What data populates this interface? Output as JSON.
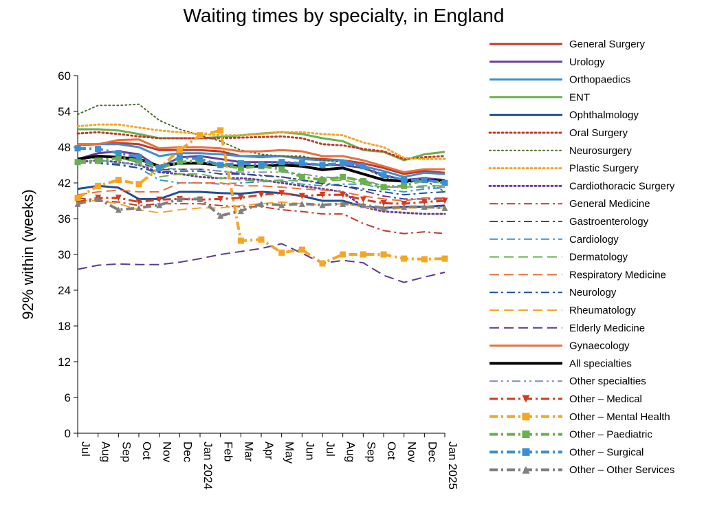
{
  "chart_data": {
    "type": "line",
    "title": "Waiting times by specialty, in England",
    "xlabel": "",
    "ylabel": "92% within  (weeks)",
    "ylim": [
      0,
      60
    ],
    "yticks": [
      0,
      6,
      12,
      18,
      24,
      30,
      36,
      42,
      48,
      54,
      60
    ],
    "grid": false,
    "legend_position": "right",
    "x": [
      "Jul",
      "Aug",
      "Sep",
      "Oct",
      "Nov",
      "Dec",
      "Jan 2024",
      "Feb",
      "Mar",
      "Apr",
      "May",
      "Jun",
      "Jul",
      "Aug",
      "Sep",
      "Oct",
      "Nov",
      "Dec",
      "Jan 2025"
    ],
    "series": [
      {
        "name": "General Surgery",
        "color": "#c0392b",
        "style": "solid",
        "width": 3,
        "marker": "",
        "values": [
          48.5,
          48.5,
          48.7,
          48.5,
          47.5,
          47.5,
          47.5,
          47.3,
          46.5,
          46.5,
          46.5,
          46.2,
          46,
          45.8,
          45.3,
          44.5,
          43.5,
          44,
          43.7
        ]
      },
      {
        "name": "Urology",
        "color": "#6a3d9a",
        "style": "solid",
        "width": 3,
        "marker": "",
        "values": [
          46,
          47,
          47.3,
          46.8,
          44.5,
          46.3,
          46.5,
          46,
          45.5,
          45.5,
          45.5,
          45.2,
          45,
          45,
          44.5,
          43.3,
          42.5,
          42.8,
          42.5
        ]
      },
      {
        "name": "Orthopaedics",
        "color": "#3a8fd4",
        "style": "solid",
        "width": 3,
        "marker": "",
        "values": [
          48.3,
          48.5,
          48.5,
          48,
          46.5,
          47,
          47,
          46.8,
          46.5,
          46.3,
          46.5,
          46,
          45.8,
          45.8,
          44.8,
          44,
          43,
          43.7,
          43.5
        ]
      },
      {
        "name": "ENT",
        "color": "#6ab04c",
        "style": "solid",
        "width": 3,
        "marker": "",
        "values": [
          51,
          51,
          50.8,
          50.2,
          49.5,
          49.5,
          49.5,
          49.7,
          50,
          50.3,
          50.5,
          50.2,
          49.5,
          49,
          47.5,
          47.2,
          45.8,
          46.8,
          47.2
        ]
      },
      {
        "name": "Ophthalmology",
        "color": "#1f4e96",
        "style": "solid",
        "width": 3,
        "marker": "",
        "values": [
          41,
          41.5,
          41.2,
          39.3,
          39.3,
          40.5,
          40.5,
          40.3,
          40.2,
          40.5,
          40.3,
          39.8,
          39,
          39,
          38,
          37.8,
          38,
          38,
          38.2
        ]
      },
      {
        "name": "Oral Surgery",
        "color": "#c0392b",
        "style": "dotted",
        "width": 3,
        "marker": "",
        "values": [
          50.3,
          50.5,
          50.2,
          49.8,
          49.5,
          49.5,
          49.5,
          49.5,
          49.6,
          49.7,
          49.8,
          49.5,
          48.5,
          48.3,
          47.7,
          47.3,
          46,
          46.3,
          46.5
        ]
      },
      {
        "name": "Neurosurgery",
        "color": "#4d6b2a",
        "style": "dotted",
        "width": 2,
        "marker": "",
        "values": [
          53.5,
          55,
          55,
          55.2,
          52.5,
          51,
          50,
          49,
          47.5,
          46.8,
          46.5,
          46.5,
          45.8,
          45.5,
          44.5,
          43,
          42,
          42.5,
          40.5
        ]
      },
      {
        "name": "Plastic Surgery",
        "color": "#f5a623",
        "style": "dotted",
        "width": 3,
        "marker": "",
        "values": [
          51.5,
          51.8,
          51.8,
          51.3,
          50.8,
          50.5,
          50.2,
          50,
          50,
          50.2,
          50.5,
          50.5,
          50.2,
          50,
          48.8,
          48,
          46.2,
          46,
          46
        ]
      },
      {
        "name": "Cardiothoracic Surgery",
        "color": "#6a3d9a",
        "style": "dotted",
        "width": 3,
        "marker": "",
        "values": [
          45.5,
          45.8,
          45.5,
          45,
          43.8,
          43.5,
          43,
          42.8,
          42.8,
          42.5,
          42,
          41.5,
          41,
          40.5,
          38,
          37.2,
          37,
          36.8,
          36.8
        ]
      },
      {
        "name": "General Medicine",
        "color": "#c0392b",
        "style": "dashdot",
        "width": 2,
        "marker": "",
        "values": [
          39.5,
          39,
          38.8,
          38.2,
          38.5,
          38.5,
          38.5,
          38.2,
          38,
          38,
          37.5,
          37.2,
          36.8,
          36.8,
          35.2,
          34,
          33.5,
          33.8,
          33.5
        ]
      },
      {
        "name": "Gastroenterology",
        "color": "#5b3a8c",
        "style": "dashdot",
        "width": 2,
        "marker": "",
        "values": [
          45.3,
          46,
          46.2,
          45.5,
          44.2,
          44.3,
          44.3,
          44,
          43.5,
          43.3,
          43,
          42.5,
          41.8,
          41.5,
          40.7,
          39.8,
          39.3,
          39.3,
          39.3
        ]
      },
      {
        "name": "Cardiology",
        "color": "#3a8fd4",
        "style": "dashdot",
        "width": 2,
        "marker": "",
        "values": [
          45.3,
          45.5,
          45.2,
          44.5,
          42.5,
          42,
          42,
          41.8,
          42,
          42.2,
          42.3,
          41.8,
          41.5,
          41.8,
          41.8,
          41,
          40.5,
          41,
          41.2
        ]
      },
      {
        "name": "Dermatology",
        "color": "#6ab04c",
        "style": "dashed",
        "width": 2,
        "marker": "",
        "values": [
          46,
          46.2,
          46.3,
          45.3,
          43,
          43.5,
          43.5,
          42.8,
          42.5,
          42.3,
          42.5,
          42.3,
          42.3,
          42.5,
          41.8,
          41.3,
          41.3,
          41.5,
          41.5
        ]
      },
      {
        "name": "Respiratory Medicine",
        "color": "#e8703a",
        "style": "dashed",
        "width": 2,
        "marker": "",
        "values": [
          40,
          40.5,
          40.8,
          40.5,
          40.5,
          42,
          42,
          42,
          41.5,
          41.5,
          41.3,
          41,
          40.8,
          40.5,
          39.8,
          39.3,
          39,
          39.5,
          39.5
        ]
      },
      {
        "name": "Neurology",
        "color": "#1f4e96",
        "style": "dashdot",
        "width": 2,
        "marker": "",
        "values": [
          45.5,
          45.3,
          45,
          44.5,
          43.8,
          44,
          44,
          43.5,
          43.5,
          43.2,
          43,
          42.5,
          42,
          41.5,
          41,
          40.5,
          40,
          40.3,
          40.5
        ]
      },
      {
        "name": "Rheumatology",
        "color": "#f5a623",
        "style": "dashed",
        "width": 2,
        "marker": "",
        "values": [
          39,
          39,
          38.5,
          37.5,
          37,
          37.5,
          37.8,
          37.8,
          38.2,
          38.5,
          38.8,
          38.5,
          38.3,
          38.5,
          38,
          37.5,
          37.8,
          37.8,
          37.8
        ]
      },
      {
        "name": "Elderly Medicine",
        "color": "#5b3a8c",
        "style": "dashed",
        "width": 2,
        "marker": "",
        "values": [
          27.5,
          28.2,
          28.4,
          28.3,
          28.3,
          28.7,
          29.3,
          30,
          30.5,
          31,
          31.8,
          30.2,
          28.5,
          29,
          28.6,
          26.5,
          25.3,
          26.2,
          27
        ]
      },
      {
        "name": "Gynaecology",
        "color": "#e8703a",
        "style": "solid",
        "width": 3,
        "marker": "",
        "values": [
          48.5,
          48.5,
          49.2,
          49.3,
          47.8,
          48,
          48,
          47.8,
          47.3,
          47.3,
          47.5,
          47.3,
          46.5,
          46.5,
          45.8,
          44.8,
          43.8,
          44.3,
          44.3
        ]
      },
      {
        "name": "All specialties",
        "color": "#000000",
        "style": "solid",
        "width": 4,
        "marker": "",
        "values": [
          46,
          46.5,
          46.3,
          46,
          44.8,
          45.3,
          45.3,
          45,
          44.8,
          44.8,
          45,
          44.8,
          44.2,
          44.5,
          43.5,
          42.5,
          42.3,
          42.5,
          42.3
        ]
      },
      {
        "name": "Other specialties",
        "color": "#7f8fb0",
        "style": "dashdotdot",
        "width": 2,
        "marker": "",
        "values": [
          45.8,
          45.8,
          45.5,
          45,
          44.5,
          44.3,
          44.3,
          44,
          43.8,
          43.8,
          43.8,
          43.5,
          43,
          42.8,
          42.5,
          41.5,
          41.3,
          41.3,
          41.3
        ]
      },
      {
        "name": "Other – Medical",
        "color": "#d63a1e",
        "style": "dashdot",
        "width": 3,
        "marker": "triangle-down",
        "values": [
          38.8,
          39.5,
          39.5,
          38.8,
          39.2,
          39.3,
          39.2,
          39.3,
          39.5,
          40,
          40.3,
          39.8,
          40,
          40,
          39.2,
          38.6,
          38.5,
          38.8,
          39
        ]
      },
      {
        "name": "Other – Mental Health",
        "color": "#f5a623",
        "style": "dashdot",
        "width": 4,
        "marker": "square",
        "values": [
          39.5,
          41.5,
          42.5,
          41.8,
          44.5,
          47.5,
          50,
          50.8,
          32.3,
          32.5,
          30.3,
          30.8,
          28.5,
          30,
          30,
          30,
          29.3,
          29.2,
          29.3
        ]
      },
      {
        "name": "Other – Paediatric",
        "color": "#6ab04c",
        "style": "dashdot",
        "width": 4,
        "marker": "square",
        "values": [
          45.5,
          45.7,
          46.2,
          45.8,
          44.5,
          45.5,
          45.7,
          45,
          44.5,
          44.8,
          44.3,
          43,
          42.5,
          43,
          42.3,
          41.3,
          41.5,
          42.5,
          42
        ]
      },
      {
        "name": "Other – Surgical",
        "color": "#3a8fd4",
        "style": "dashdot",
        "width": 4,
        "marker": "square",
        "values": [
          47.8,
          47.7,
          47,
          46.3,
          44.5,
          46.3,
          46,
          45,
          45.3,
          45,
          45.5,
          45.3,
          45,
          45.3,
          44.8,
          43.3,
          42.5,
          42.5,
          42
        ]
      },
      {
        "name": "Other – Other Services",
        "color": "#808080",
        "style": "dashdot",
        "width": 4,
        "marker": "triangle-up",
        "values": [
          38.5,
          39.3,
          37.5,
          37.8,
          38.3,
          39.3,
          39.3,
          36.5,
          37.3,
          38.5,
          38.3,
          38.5,
          38.3,
          38.5,
          38.3,
          37.8,
          38,
          38,
          37.8
        ]
      }
    ]
  }
}
